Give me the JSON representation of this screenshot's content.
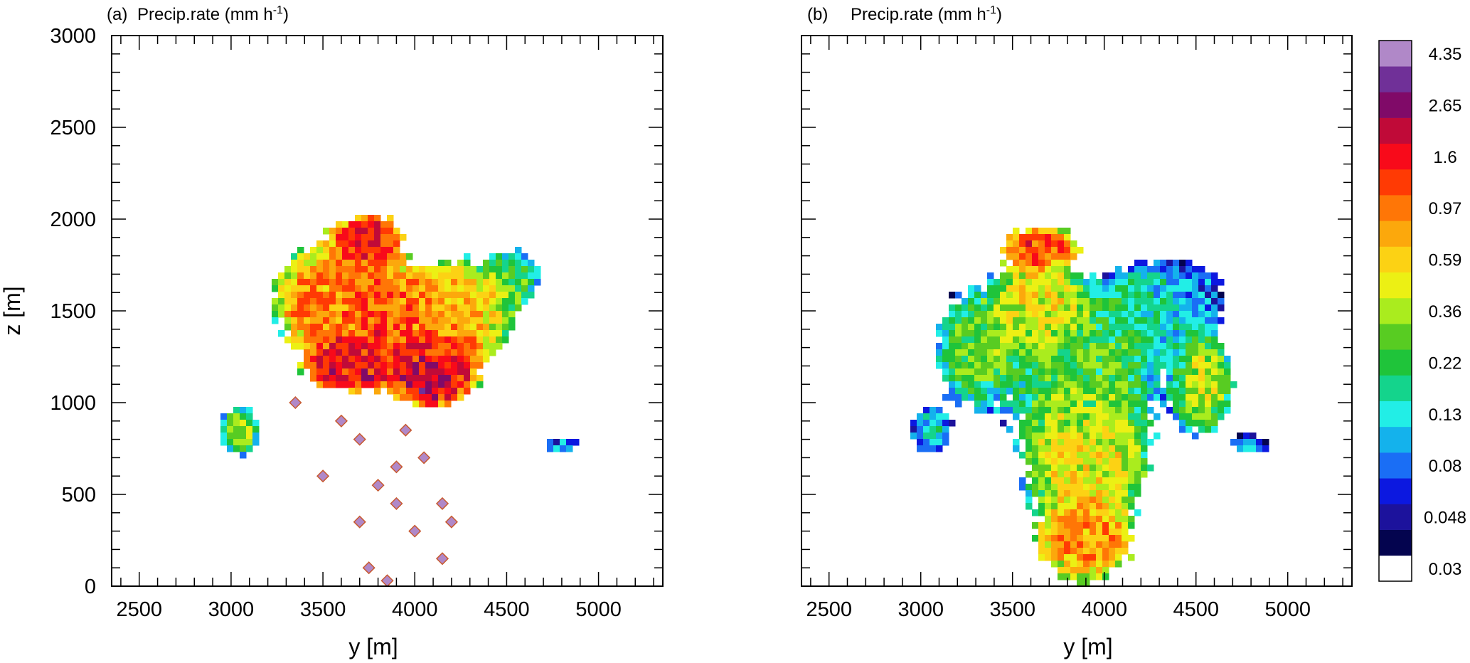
{
  "chart_data": [
    {
      "type": "heatmap",
      "panel_label": "(a)",
      "title": "Precip.rate (mm h",
      "title_superscript": "-1",
      "title_suffix": ")",
      "xlabel": "y [m]",
      "ylabel": "z [m]",
      "xlim": [
        2350,
        5350
      ],
      "ylim": [
        0,
        3000
      ],
      "xticks": [
        "2500",
        "3000",
        "3500",
        "4000",
        "4500",
        "5000"
      ],
      "yticks": [
        "0",
        "500",
        "1000",
        "1500",
        "2000",
        "2500",
        "3000"
      ],
      "field": {
        "description_values": "Estimated precipitation-rate field (mm h-1) read from the contour colors",
        "blobs": [
          {
            "y": 3750,
            "z": 1900,
            "value": 1.6,
            "ry": 200,
            "rz": 140
          },
          {
            "y": 3800,
            "z": 1450,
            "value": 1.2,
            "ry": 450,
            "rz": 300
          },
          {
            "y": 3550,
            "z": 1600,
            "value": 0.7,
            "ry": 350,
            "rz": 300
          },
          {
            "y": 4250,
            "z": 1500,
            "value": 0.5,
            "ry": 350,
            "rz": 300
          },
          {
            "y": 4100,
            "z": 1150,
            "value": 2.0,
            "ry": 250,
            "rz": 200
          },
          {
            "y": 3650,
            "z": 1200,
            "value": 1.8,
            "ry": 250,
            "rz": 150
          },
          {
            "y": 4550,
            "z": 1700,
            "value": 0.15,
            "ry": 150,
            "rz": 150
          },
          {
            "y": 3050,
            "z": 850,
            "value": 0.3,
            "ry": 120,
            "rz": 150
          },
          {
            "y": 4800,
            "z": 770,
            "value": 0.08,
            "ry": 120,
            "rz": 60
          }
        ],
        "drops": [
          {
            "y": 3600,
            "z": 900,
            "value": 4.5
          },
          {
            "y": 3700,
            "z": 800,
            "value": 4.5
          },
          {
            "y": 3950,
            "z": 850,
            "value": 4.5
          },
          {
            "y": 4050,
            "z": 700,
            "value": 4.5
          },
          {
            "y": 3800,
            "z": 550,
            "value": 4.5
          },
          {
            "y": 3900,
            "z": 450,
            "value": 4.5
          },
          {
            "y": 4150,
            "z": 450,
            "value": 4.5
          },
          {
            "y": 3500,
            "z": 600,
            "value": 4.5
          },
          {
            "y": 4200,
            "z": 350,
            "value": 4.5
          },
          {
            "y": 3700,
            "z": 350,
            "value": 4.5
          },
          {
            "y": 4000,
            "z": 300,
            "value": 4.5
          },
          {
            "y": 3350,
            "z": 1000,
            "value": 4.5
          },
          {
            "y": 3750,
            "z": 100,
            "value": 4.5
          },
          {
            "y": 3850,
            "z": 30,
            "value": 4.5
          },
          {
            "y": 4150,
            "z": 150,
            "value": 4.5
          },
          {
            "y": 3900,
            "z": 650,
            "value": 4.5
          }
        ]
      }
    },
    {
      "type": "heatmap",
      "panel_label": "(b)",
      "title": "Precip.rate (mm h",
      "title_superscript": "-1",
      "title_suffix": ")",
      "xlabel": "y [m]",
      "ylabel": "",
      "xlim": [
        2350,
        5350
      ],
      "ylim": [
        0,
        3000
      ],
      "xticks": [
        "2500",
        "3000",
        "3500",
        "4000",
        "4500",
        "5000"
      ],
      "yticks": [],
      "field": {
        "description_values": "Estimated precipitation-rate field (mm h-1) read from the contour colors",
        "blobs": [
          {
            "y": 3650,
            "z": 1850,
            "value": 1.3,
            "ry": 230,
            "rz": 120
          },
          {
            "y": 3650,
            "z": 1550,
            "value": 0.5,
            "ry": 250,
            "rz": 250
          },
          {
            "y": 4250,
            "z": 1550,
            "value": 0.13,
            "ry": 300,
            "rz": 250
          },
          {
            "y": 4500,
            "z": 1600,
            "value": 0.06,
            "ry": 180,
            "rz": 180
          },
          {
            "y": 3900,
            "z": 1200,
            "value": 0.22,
            "ry": 450,
            "rz": 400
          },
          {
            "y": 3900,
            "z": 700,
            "value": 0.45,
            "ry": 400,
            "rz": 350
          },
          {
            "y": 3900,
            "z": 250,
            "value": 0.8,
            "ry": 300,
            "rz": 250
          },
          {
            "y": 3300,
            "z": 1300,
            "value": 0.25,
            "ry": 250,
            "rz": 350
          },
          {
            "y": 4550,
            "z": 1100,
            "value": 0.35,
            "ry": 180,
            "rz": 300
          },
          {
            "y": 3050,
            "z": 850,
            "value": 0.12,
            "ry": 120,
            "rz": 150
          },
          {
            "y": 4800,
            "z": 770,
            "value": 0.08,
            "ry": 120,
            "rz": 60
          }
        ],
        "drops": []
      }
    }
  ],
  "colorbar": {
    "colors": [
      "#ffffff",
      "#04044f",
      "#1c129c",
      "#0c18e0",
      "#1a6ef5",
      "#14b2ec",
      "#22eee6",
      "#14d48c",
      "#1fc43a",
      "#58cc22",
      "#aaec1e",
      "#ecf014",
      "#fcd214",
      "#fca80c",
      "#ff7606",
      "#ff3a04",
      "#f80a1a",
      "#c00a38",
      "#800a68",
      "#703098",
      "#b088c8"
    ],
    "labels": [
      "0.03",
      "0.048",
      "0.08",
      "0.13",
      "0.22",
      "0.36",
      "0.59",
      "0.97",
      "1.6",
      "2.65",
      "4.35"
    ],
    "bounds": [
      0.03,
      0.038,
      0.048,
      0.06,
      0.08,
      0.1,
      0.13,
      0.17,
      0.22,
      0.28,
      0.36,
      0.46,
      0.59,
      0.76,
      0.97,
      1.25,
      1.6,
      2.1,
      2.65,
      3.4,
      4.35
    ]
  }
}
